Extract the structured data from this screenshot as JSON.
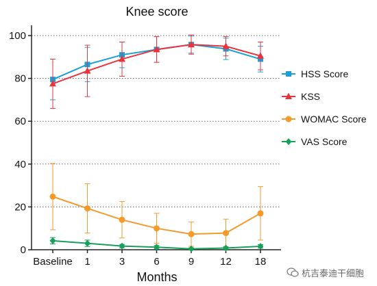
{
  "chart_data": {
    "type": "line",
    "title": "Knee score",
    "xlabel": "Months",
    "ylabel": "",
    "categories": [
      "Baseline",
      "1",
      "3",
      "6",
      "9",
      "12",
      "18"
    ],
    "ylim": [
      0,
      100
    ],
    "yticks": [
      0,
      20,
      40,
      60,
      80,
      100
    ],
    "grid": "horizontal dotted",
    "legend": "right",
    "series": [
      {
        "name": "HSS Score",
        "color": "#1aa0d8",
        "marker": "square",
        "values": [
          79.5,
          86.5,
          91,
          93.5,
          95.8,
          93.8,
          89
        ],
        "err": [
          9.5,
          8,
          6,
          6,
          4,
          5,
          6
        ]
      },
      {
        "name": "KSS",
        "color": "#e8353d",
        "marker": "triangle",
        "values": [
          77.5,
          83.5,
          89,
          93.5,
          95.8,
          95,
          90.5
        ],
        "err": [
          11.5,
          12,
          8,
          6,
          4.5,
          4.5,
          6.5
        ]
      },
      {
        "name": "WOMAC Score",
        "color": "#f39a2b",
        "marker": "circle",
        "values": [
          24.8,
          19.3,
          14,
          10,
          7.3,
          7.8,
          17
        ],
        "err": [
          15.5,
          11.5,
          8.5,
          7,
          5.7,
          6.5,
          12.5
        ]
      },
      {
        "name": "VAS Score",
        "color": "#16a05a",
        "marker": "diamond",
        "values": [
          4.2,
          3,
          1.7,
          1.2,
          0.4,
          0.8,
          1.6
        ],
        "err": [
          1.5,
          1.5,
          0.8,
          0.8,
          0.5,
          0.6,
          0.8
        ]
      }
    ]
  },
  "watermark": {
    "text": "杭吉泰迪干细胞",
    "icon": "wechat-icon"
  }
}
